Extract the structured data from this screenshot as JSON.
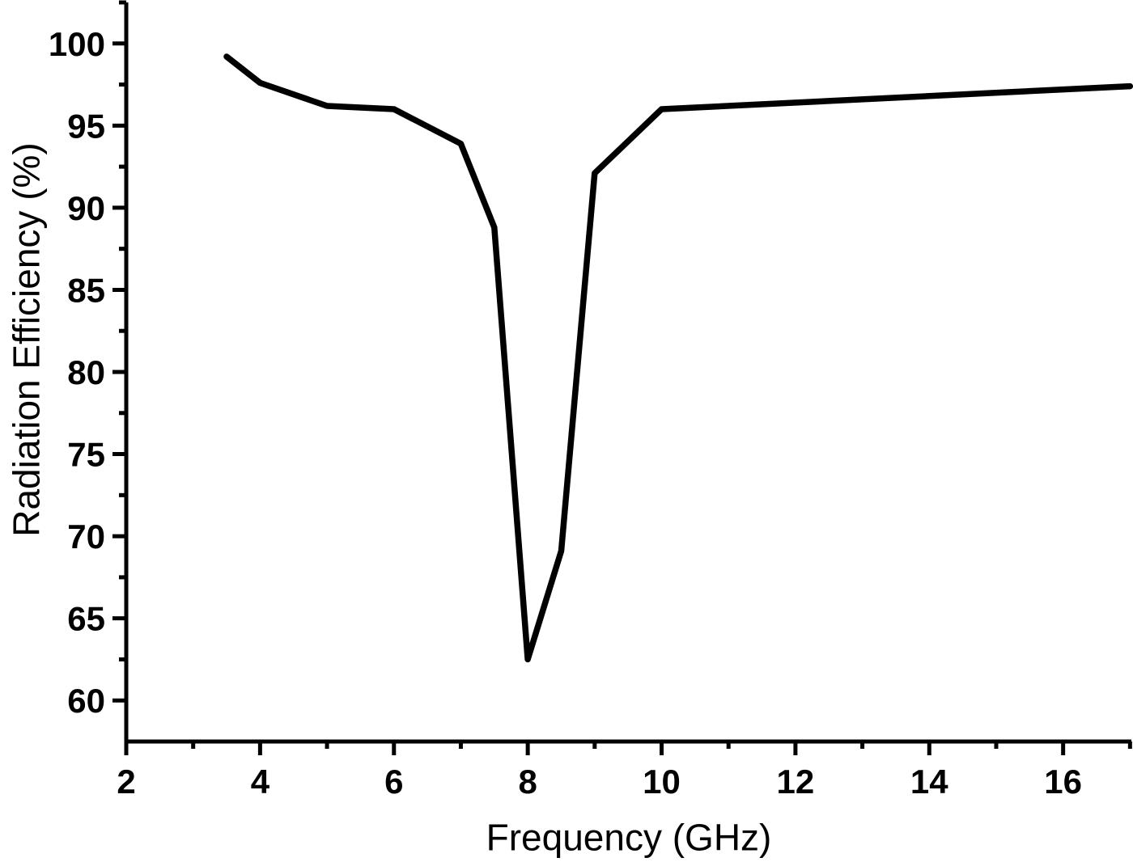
{
  "chart_data": {
    "type": "line",
    "title": "",
    "xlabel": "Frequency (GHz)",
    "ylabel": "Radiation Efficiency (%)",
    "xlim": [
      2,
      17.02
    ],
    "ylim": [
      57.5,
      102.5
    ],
    "x_major_ticks": [
      2,
      4,
      6,
      8,
      10,
      12,
      14,
      16
    ],
    "x_minor_ticks": [
      3,
      5,
      7,
      9,
      11,
      13,
      15,
      17
    ],
    "y_major_ticks": [
      60,
      65,
      70,
      75,
      80,
      85,
      90,
      95,
      100
    ],
    "y_minor_ticks": [
      62.5,
      67.5,
      72.5,
      77.5,
      82.5,
      87.5,
      92.5,
      97.5,
      102.5
    ],
    "grid": false,
    "legend": "none",
    "background_color": "#ffffff",
    "axis_color": "#000000",
    "series": [
      {
        "name": "radiation-efficiency",
        "color": "#000000",
        "line_width": 7.5,
        "points": [
          {
            "x": 3.5,
            "y": 99.2
          },
          {
            "x": 4.0,
            "y": 97.6
          },
          {
            "x": 5.0,
            "y": 96.2
          },
          {
            "x": 6.0,
            "y": 96.0
          },
          {
            "x": 7.0,
            "y": 93.9
          },
          {
            "x": 7.5,
            "y": 88.8
          },
          {
            "x": 8.0,
            "y": 62.5
          },
          {
            "x": 8.5,
            "y": 69.1
          },
          {
            "x": 9.0,
            "y": 92.1
          },
          {
            "x": 10.0,
            "y": 96.0
          },
          {
            "x": 17.0,
            "y": 97.4
          }
        ]
      }
    ]
  }
}
